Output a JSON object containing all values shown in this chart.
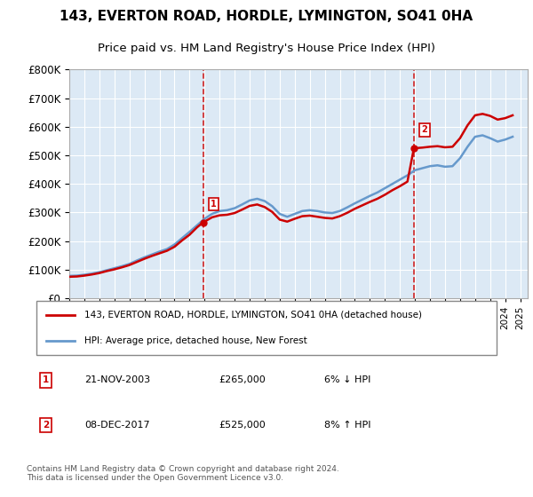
{
  "title1": "143, EVERTON ROAD, HORDLE, LYMINGTON, SO41 0HA",
  "title2": "Price paid vs. HM Land Registry's House Price Index (HPI)",
  "legend_line1": "143, EVERTON ROAD, HORDLE, LYMINGTON, SO41 0HA (detached house)",
  "legend_line2": "HPI: Average price, detached house, New Forest",
  "annotation1": {
    "num": "1",
    "date": "21-NOV-2003",
    "price": "£265,000",
    "hpi": "6% ↓ HPI"
  },
  "annotation2": {
    "num": "2",
    "date": "08-DEC-2017",
    "price": "£525,000",
    "hpi": "8% ↑ HPI"
  },
  "footer": "Contains HM Land Registry data © Crown copyright and database right 2024.\nThis data is licensed under the Open Government Licence v3.0.",
  "ylim": [
    0,
    800000
  ],
  "yticks": [
    0,
    100000,
    200000,
    300000,
    400000,
    500000,
    600000,
    700000,
    800000
  ],
  "xlim_start": 1995.0,
  "xlim_end": 2025.5,
  "background_color": "#dce9f5",
  "plot_bg": "#dce9f5",
  "red_line_color": "#cc0000",
  "blue_line_color": "#6699cc",
  "vline_color": "#cc0000",
  "marker_box_color": "#cc0000",
  "sale1_x": 2003.9,
  "sale1_y": 265000,
  "sale2_x": 2017.93,
  "sale2_y": 525000,
  "hpi_x": [
    1995.0,
    1995.5,
    1996.0,
    1996.5,
    1997.0,
    1997.5,
    1998.0,
    1998.5,
    1999.0,
    1999.5,
    2000.0,
    2000.5,
    2001.0,
    2001.5,
    2002.0,
    2002.5,
    2003.0,
    2003.5,
    2004.0,
    2004.5,
    2005.0,
    2005.5,
    2006.0,
    2006.5,
    2007.0,
    2007.5,
    2008.0,
    2008.5,
    2009.0,
    2009.5,
    2010.0,
    2010.5,
    2011.0,
    2011.5,
    2012.0,
    2012.5,
    2013.0,
    2013.5,
    2014.0,
    2014.5,
    2015.0,
    2015.5,
    2016.0,
    2016.5,
    2017.0,
    2017.5,
    2018.0,
    2018.5,
    2019.0,
    2019.5,
    2020.0,
    2020.5,
    2021.0,
    2021.5,
    2022.0,
    2022.5,
    2023.0,
    2023.5,
    2024.0,
    2024.5
  ],
  "hpi_y": [
    78000,
    79000,
    82000,
    86000,
    91000,
    98000,
    105000,
    112000,
    120000,
    132000,
    143000,
    153000,
    163000,
    172000,
    188000,
    210000,
    232000,
    255000,
    278000,
    295000,
    305000,
    308000,
    315000,
    328000,
    342000,
    348000,
    340000,
    322000,
    295000,
    285000,
    295000,
    305000,
    308000,
    305000,
    300000,
    298000,
    305000,
    318000,
    332000,
    345000,
    358000,
    370000,
    385000,
    400000,
    415000,
    430000,
    448000,
    455000,
    462000,
    465000,
    460000,
    462000,
    490000,
    530000,
    565000,
    570000,
    560000,
    548000,
    555000,
    565000
  ],
  "price_x": [
    1995.0,
    1995.5,
    1996.0,
    1996.5,
    1997.0,
    1997.5,
    1998.0,
    1998.5,
    1999.0,
    1999.5,
    2000.0,
    2000.5,
    2001.0,
    2001.5,
    2002.0,
    2002.5,
    2003.0,
    2003.5,
    2003.9,
    2004.0,
    2004.5,
    2005.0,
    2005.5,
    2006.0,
    2006.5,
    2007.0,
    2007.5,
    2008.0,
    2008.5,
    2009.0,
    2009.5,
    2010.0,
    2010.5,
    2011.0,
    2011.5,
    2012.0,
    2012.5,
    2013.0,
    2013.5,
    2014.0,
    2014.5,
    2015.0,
    2015.5,
    2016.0,
    2016.5,
    2017.0,
    2017.5,
    2017.93,
    2018.0,
    2018.5,
    2019.0,
    2019.5,
    2020.0,
    2020.5,
    2021.0,
    2021.5,
    2022.0,
    2022.5,
    2023.0,
    2023.5,
    2024.0,
    2024.5
  ],
  "price_y": [
    75000,
    76000,
    79000,
    83000,
    88000,
    95000,
    101000,
    108000,
    116000,
    127000,
    138000,
    148000,
    157000,
    166000,
    180000,
    202000,
    222000,
    248000,
    265000,
    268000,
    283000,
    290000,
    292000,
    298000,
    310000,
    323000,
    328000,
    319000,
    302000,
    275000,
    268000,
    278000,
    287000,
    289000,
    285000,
    281000,
    279000,
    287000,
    299000,
    313000,
    325000,
    337000,
    348000,
    362000,
    378000,
    392000,
    408000,
    525000,
    525000,
    527000,
    530000,
    532000,
    528000,
    530000,
    560000,
    605000,
    640000,
    645000,
    638000,
    625000,
    630000,
    640000
  ]
}
